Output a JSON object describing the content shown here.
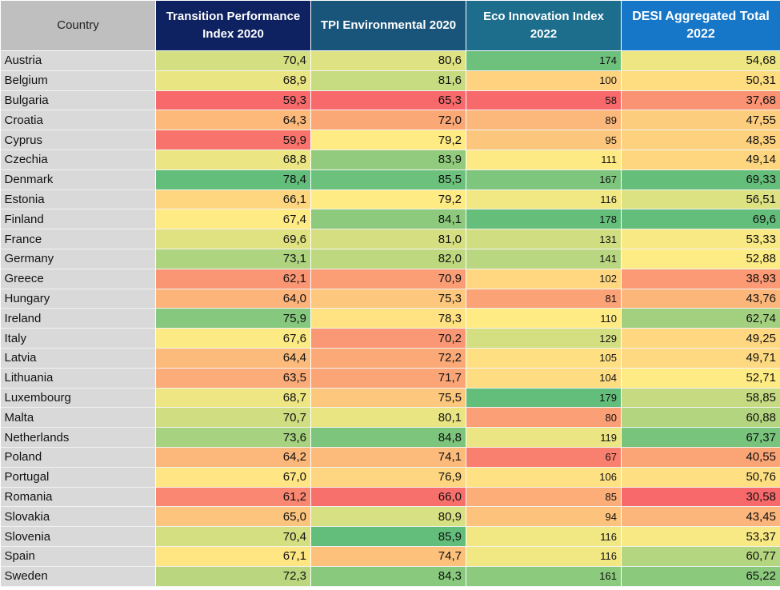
{
  "chart_data": {
    "type": "table",
    "columns": [
      "Country",
      "Transition Performance Index 2020",
      "TPI Environmental 2020",
      "Eco Innovation Index 2022",
      "DESI Aggregated Total 2022"
    ],
    "rows": [
      [
        "Austria",
        "70,4",
        "80,6",
        "174",
        "54,68"
      ],
      [
        "Belgium",
        "68,9",
        "81,6",
        "100",
        "50,31"
      ],
      [
        "Bulgaria",
        "59,3",
        "65,3",
        "58",
        "37,68"
      ],
      [
        "Croatia",
        "64,3",
        "72,0",
        "89",
        "47,55"
      ],
      [
        "Cyprus",
        "59,9",
        "79,2",
        "95",
        "48,35"
      ],
      [
        "Czechia",
        "68,8",
        "83,9",
        "111",
        "49,14"
      ],
      [
        "Denmark",
        "78,4",
        "85,5",
        "167",
        "69,33"
      ],
      [
        "Estonia",
        "66,1",
        "79,2",
        "116",
        "56,51"
      ],
      [
        "Finland",
        "67,4",
        "84,1",
        "178",
        "69,6"
      ],
      [
        "France",
        "69,6",
        "81,0",
        "131",
        "53,33"
      ],
      [
        "Germany",
        "73,1",
        "82,0",
        "141",
        "52,88"
      ],
      [
        "Greece",
        "62,1",
        "70,9",
        "102",
        "38,93"
      ],
      [
        "Hungary",
        "64,0",
        "75,3",
        "81",
        "43,76"
      ],
      [
        "Ireland",
        "75,9",
        "78,3",
        "110",
        "62,74"
      ],
      [
        "Italy",
        "67,6",
        "70,2",
        "129",
        "49,25"
      ],
      [
        "Latvia",
        "64,4",
        "72,2",
        "105",
        "49,71"
      ],
      [
        "Lithuania",
        "63,5",
        "71,7",
        "104",
        "52,71"
      ],
      [
        "Luxembourg",
        "68,7",
        "75,5",
        "179",
        "58,85"
      ],
      [
        "Malta",
        "70,7",
        "80,1",
        "80",
        "60,88"
      ],
      [
        "Netherlands",
        "73,6",
        "84,8",
        "119",
        "67,37"
      ],
      [
        "Poland",
        "64,2",
        "74,1",
        "67",
        "40,55"
      ],
      [
        "Portugal",
        "67,0",
        "76,9",
        "106",
        "50,76"
      ],
      [
        "Romania",
        "61,2",
        "66,0",
        "85",
        "30,58"
      ],
      [
        "Slovakia",
        "65,0",
        "80,9",
        "94",
        "43,45"
      ],
      [
        "Slovenia",
        "70,4",
        "85,9",
        "116",
        "53,37"
      ],
      [
        "Spain",
        "67,1",
        "74,7",
        "116",
        "60,77"
      ],
      [
        "Sweden",
        "72,3",
        "84,3",
        "161",
        "65,22"
      ]
    ],
    "color_scale": {
      "low": "#f8696b",
      "mid": "#ffeb84",
      "high": "#63be7b"
    }
  }
}
